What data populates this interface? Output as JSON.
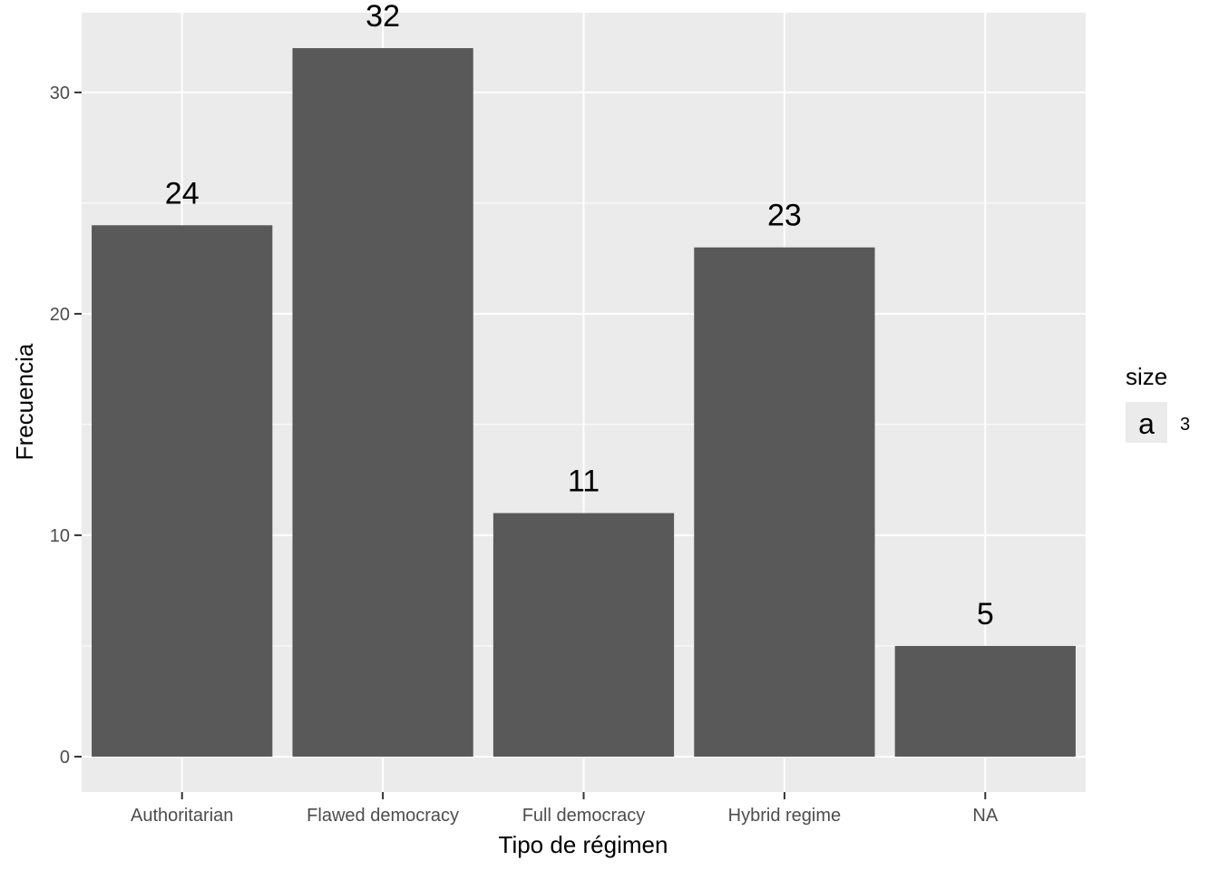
{
  "chart_data": {
    "type": "bar",
    "categories": [
      "Authoritarian",
      "Flawed democracy",
      "Full democracy",
      "Hybrid regime",
      "NA"
    ],
    "values": [
      24,
      32,
      11,
      23,
      5
    ],
    "data_labels": [
      "24",
      "32",
      "11",
      "23",
      "5"
    ],
    "xlabel": "Tipo de régimen",
    "ylabel": "Frecuencia",
    "ylim": [
      -1.6,
      33.6
    ],
    "yticks": [
      0,
      10,
      20,
      30
    ],
    "grid": true,
    "bar_color": "#595959",
    "panel_background": "#ebebeb",
    "legend": {
      "title": "size",
      "key_glyph": "a",
      "label": "3",
      "position": "right"
    }
  }
}
